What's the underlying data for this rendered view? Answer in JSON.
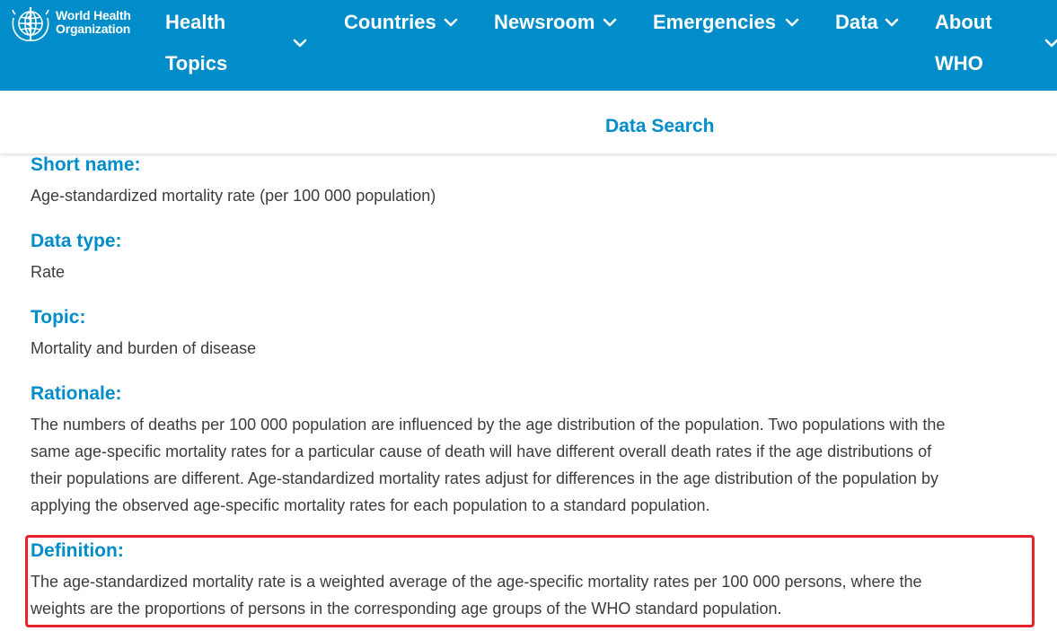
{
  "header": {
    "logo_line1": "World Health",
    "logo_line2": "Organization",
    "nav": [
      {
        "line1": "Health",
        "line2": "Topics"
      },
      {
        "label": "Countries"
      },
      {
        "label": "Newsroom"
      },
      {
        "label": "Emergencies"
      },
      {
        "label": "Data"
      },
      {
        "line1": "About",
        "line2": "WHO"
      }
    ]
  },
  "subnav": {
    "data_search": "Data Search"
  },
  "fields": {
    "short_name": {
      "label": "Short name:",
      "value": "Age-standardized mortality rate (per 100 000 population)"
    },
    "data_type": {
      "label": "Data type:",
      "value": "Rate"
    },
    "topic": {
      "label": "Topic:",
      "value": "Mortality and burden of disease"
    },
    "rationale": {
      "label": "Rationale:",
      "lines": [
        "The numbers of deaths per 100 000 population are influenced by the age distribution of the population. Two populations with the",
        "same age-specific mortality rates for a particular cause of death will have different overall death rates if the age distributions of",
        "their populations are different. Age-standardized mortality rates adjust for differences in the age distribution of the population by",
        "applying the observed age-specific mortality rates for each population to a standard population."
      ]
    },
    "definition": {
      "label": "Definition:",
      "lines": [
        "The age-standardized mortality rate is a weighted average of the age-specific mortality rates per 100 000 persons, where the",
        "weights are the proportions of persons in the corresponding age groups of the WHO standard population."
      ]
    }
  },
  "colors": {
    "brand_blue": "#008dc9",
    "highlight_red": "#e8222a",
    "body_text": "#3c3c3c"
  },
  "icons": {
    "logo": "who-emblem-icon",
    "dropdown": "chevron-down-icon"
  }
}
